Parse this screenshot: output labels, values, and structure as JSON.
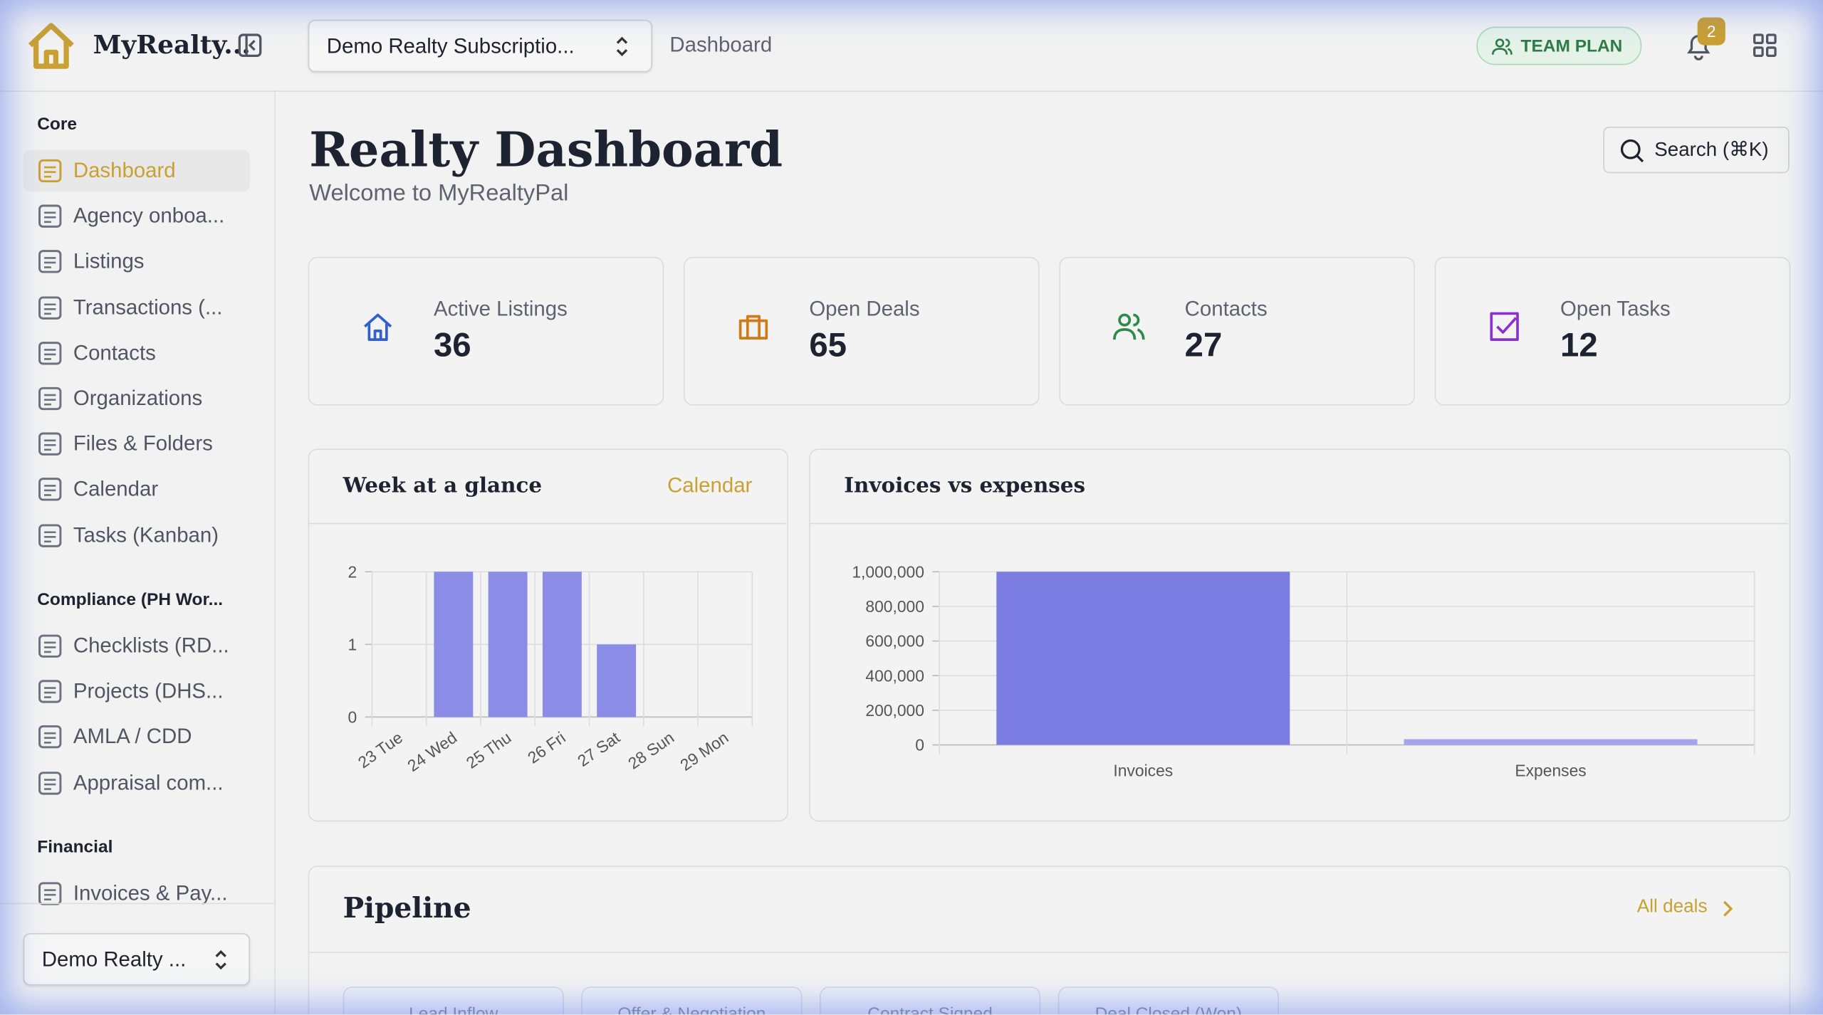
{
  "header": {
    "brand": "MyRealty...",
    "subscription": "Demo Realty Subscriptio...",
    "breadcrumb": "Dashboard",
    "plan": "TEAM PLAN",
    "notifications": "2"
  },
  "sidebar": {
    "sections": [
      {
        "title": "Core",
        "items": [
          "Dashboard",
          "Agency onboa...",
          "Listings",
          "Transactions (...",
          "Contacts",
          "Organizations",
          "Files & Folders",
          "Calendar",
          "Tasks (Kanban)"
        ]
      },
      {
        "title": "Compliance (PH Wor...",
        "items": [
          "Checklists (RD...",
          "Projects (DHS...",
          "AMLA / CDD",
          "Appraisal com..."
        ]
      },
      {
        "title": "Financial",
        "items": [
          "Invoices & Pay..."
        ]
      }
    ],
    "footer": "Demo Realty ..."
  },
  "page": {
    "title": "Realty Dashboard",
    "subtitle": "Welcome to MyRealtyPal",
    "search": "Search (⌘K)"
  },
  "stats": [
    {
      "label": "Active Listings",
      "value": "36"
    },
    {
      "label": "Open Deals",
      "value": "65"
    },
    {
      "label": "Contacts",
      "value": "27"
    },
    {
      "label": "Open Tasks",
      "value": "12"
    }
  ],
  "week_chart": {
    "type": "bar",
    "title": "Week at a glance",
    "link": "Calendar",
    "categories": [
      "23 Tue",
      "24 Wed",
      "25 Thu",
      "26 Fri",
      "27 Sat",
      "28 Sun",
      "29 Mon"
    ],
    "values": [
      0,
      2,
      2,
      2,
      1,
      0,
      0
    ],
    "color": "#8a8ce6",
    "ylim": [
      0,
      2
    ],
    "yticks": [
      0,
      1,
      2
    ]
  },
  "finance_chart": {
    "type": "bar",
    "title": "Invoices vs expenses",
    "categories": [
      "Invoices",
      "Expenses"
    ],
    "values": [
      1000000,
      33000
    ],
    "colors": [
      "#7b7de3",
      "#a3a4ee"
    ],
    "ylim": [
      0,
      1000000
    ],
    "yticks": [
      0,
      {
        "value": 200000,
        "label": "200,000"
      },
      {
        "value": 400000,
        "label": "400,000"
      },
      {
        "value": 600000,
        "label": "600,000"
      },
      {
        "value": 800000,
        "label": "800,000"
      },
      {
        "value": 1000000,
        "label": "1,000,000"
      }
    ]
  },
  "pipeline": {
    "title": "Pipeline",
    "link": "All deals",
    "stages": [
      "Lead Inflow",
      "Offer & Negotiation",
      "Contract Signed",
      "Deal Closed (Won)"
    ]
  }
}
